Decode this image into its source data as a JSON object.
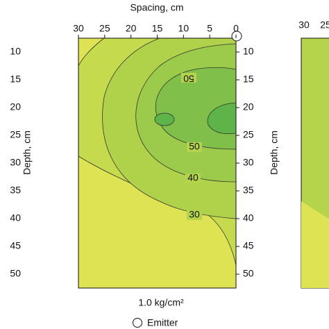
{
  "chart_data": {
    "type": "contour",
    "x_label": "Spacing, cm",
    "y_label": "Depth, cm",
    "xlim": [
      30,
      0
    ],
    "xticks": [
      30,
      25,
      20,
      15,
      10,
      5,
      0
    ],
    "ylim": [
      7.5,
      52.5
    ],
    "yticks": [
      10,
      15,
      20,
      25,
      30,
      35,
      40,
      45,
      50
    ],
    "contour_labels": [
      50,
      50,
      40,
      30
    ],
    "panel_label": "1.0 kg/cm²",
    "legend": "Emitter",
    "next_panel_xticks": [
      30,
      25
    ]
  }
}
